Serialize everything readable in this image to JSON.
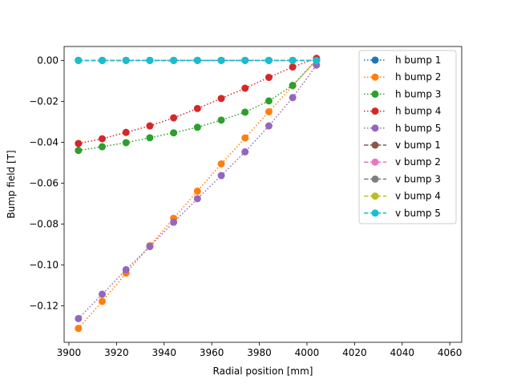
{
  "chart_data": {
    "type": "line",
    "title": "",
    "xlabel": "Radial position [mm]",
    "ylabel": "Bump field [T]",
    "xlim": [
      3898,
      4065
    ],
    "ylim": [
      -0.1378,
      0.0068
    ],
    "xticks": [
      3900,
      3920,
      3940,
      3960,
      3980,
      4000,
      4020,
      4040,
      4060
    ],
    "yticks": [
      0.0,
      -0.02,
      -0.04,
      -0.06,
      -0.08,
      -0.1,
      -0.12
    ],
    "ytick_labels": [
      "0.00",
      "−0.02",
      "−0.04",
      "−0.06",
      "−0.08",
      "−0.10",
      "−0.12"
    ],
    "legend_position": "top-right",
    "x": [
      3904,
      3914,
      3924,
      3934,
      3944,
      3954,
      3964,
      3974,
      3984,
      3994,
      4004
    ],
    "series": [
      {
        "name": "h bump 1",
        "color": "#1f77b4",
        "style": "dotted",
        "values": [
          0,
          0,
          0,
          0,
          0,
          0,
          0,
          0,
          0,
          0,
          0
        ]
      },
      {
        "name": "h bump 2",
        "color": "#ff7f0e",
        "style": "dotted",
        "values": [
          -0.131,
          -0.1178,
          -0.104,
          -0.0906,
          -0.0772,
          -0.0639,
          -0.0506,
          -0.0379,
          -0.0251,
          -0.0124,
          0.0001
        ]
      },
      {
        "name": "h bump 3",
        "color": "#2ca02c",
        "style": "dotted",
        "values": [
          -0.044,
          -0.0422,
          -0.0402,
          -0.0378,
          -0.0354,
          -0.0327,
          -0.0292,
          -0.0253,
          -0.0198,
          -0.0122,
          0.0003
        ]
      },
      {
        "name": "h bump 4",
        "color": "#d62728",
        "style": "dotted",
        "values": [
          -0.0406,
          -0.0383,
          -0.0352,
          -0.032,
          -0.0281,
          -0.0235,
          -0.0186,
          -0.0136,
          -0.0083,
          -0.0032,
          0.001
        ]
      },
      {
        "name": "h bump 5",
        "color": "#9467bd",
        "style": "dotted",
        "values": [
          -0.1262,
          -0.1143,
          -0.1023,
          -0.091,
          -0.0791,
          -0.0676,
          -0.0563,
          -0.0447,
          -0.032,
          -0.0182,
          -0.0023
        ]
      },
      {
        "name": "v bump 1",
        "color": "#8c564b",
        "style": "dashed",
        "values": [
          0,
          0,
          0,
          0,
          0,
          0,
          0,
          0,
          0,
          0,
          0
        ]
      },
      {
        "name": "v bump 2",
        "color": "#e377c2",
        "style": "dashed",
        "values": [
          0,
          0,
          0,
          0,
          0,
          0,
          0,
          0,
          0,
          0,
          0
        ]
      },
      {
        "name": "v bump 3",
        "color": "#7f7f7f",
        "style": "dashed",
        "values": [
          0,
          0,
          0,
          0,
          0,
          0,
          0,
          0,
          0,
          0,
          0
        ]
      },
      {
        "name": "v bump 4",
        "color": "#bcbd22",
        "style": "dashed",
        "values": [
          0,
          0,
          0,
          0,
          0,
          0,
          0,
          0,
          0,
          0,
          0
        ]
      },
      {
        "name": "v bump 5",
        "color": "#17becf",
        "style": "dashed",
        "values": [
          0,
          0,
          0,
          0,
          0,
          0,
          0,
          0,
          0,
          0,
          0
        ]
      }
    ]
  }
}
